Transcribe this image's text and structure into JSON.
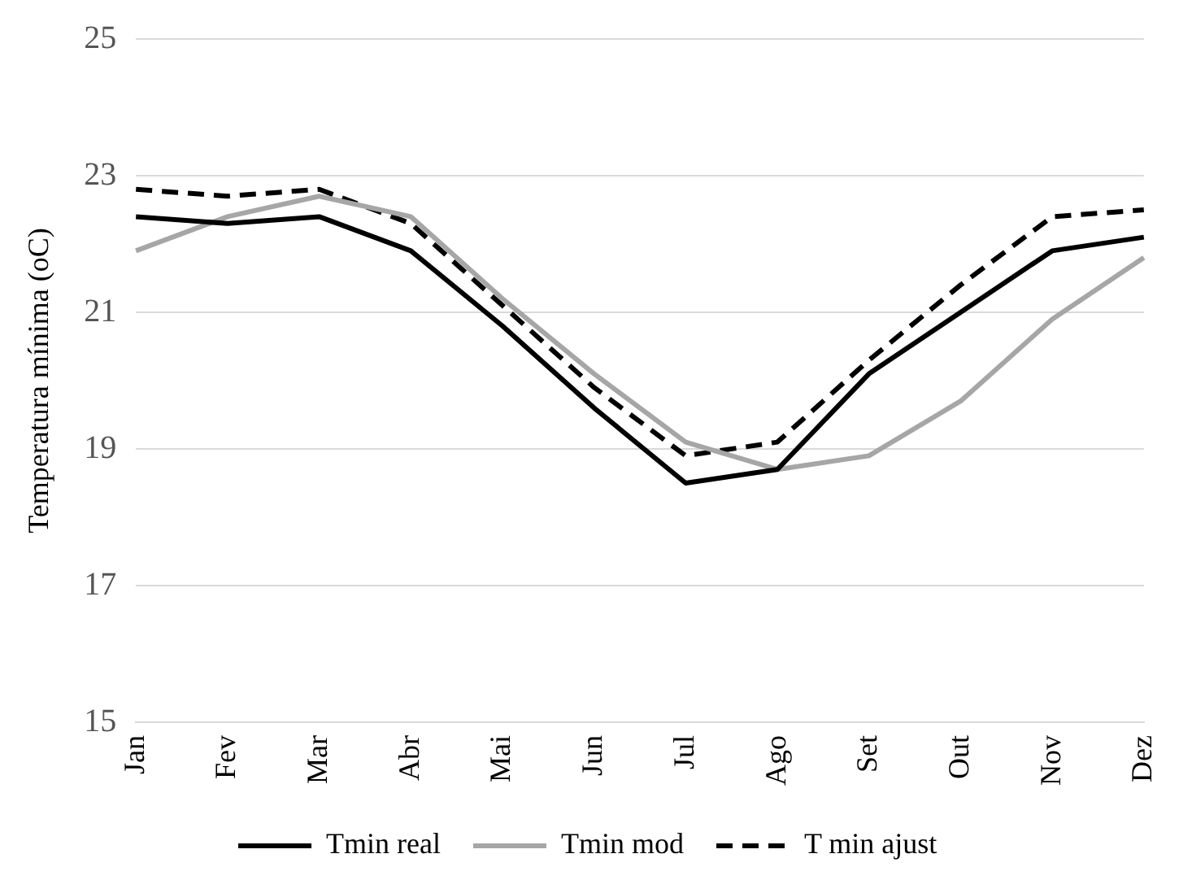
{
  "chart_data": {
    "type": "line",
    "ylabel": "Temperatura mínima (oC)",
    "categories": [
      "Jan",
      "Fev",
      "Mar",
      "Abr",
      "Mai",
      "Jun",
      "Jul",
      "Ago",
      "Set",
      "Out",
      "Nov",
      "Dez"
    ],
    "series": [
      {
        "name": "Tmin real",
        "color": "#000000",
        "values": [
          22.4,
          22.3,
          22.4,
          21.9,
          20.8,
          19.6,
          18.5,
          18.7,
          20.1,
          21.0,
          21.9,
          22.1
        ]
      },
      {
        "name": "Tmin mod",
        "color": "#a6a6a6",
        "values": [
          21.9,
          22.4,
          22.7,
          22.4,
          21.2,
          20.1,
          19.1,
          18.7,
          18.9,
          19.7,
          20.9,
          21.8
        ]
      },
      {
        "name": "T min ajust",
        "color": "#000000",
        "line_style": "dashed",
        "values": [
          22.8,
          22.7,
          22.8,
          22.3,
          21.1,
          19.9,
          18.9,
          19.1,
          20.3,
          21.4,
          22.4,
          22.5
        ]
      }
    ],
    "ylim": [
      15,
      25
    ],
    "yticks": [
      15,
      17,
      19,
      21,
      23,
      25
    ],
    "grid": "y",
    "legend": "bottom",
    "marker": "none"
  }
}
